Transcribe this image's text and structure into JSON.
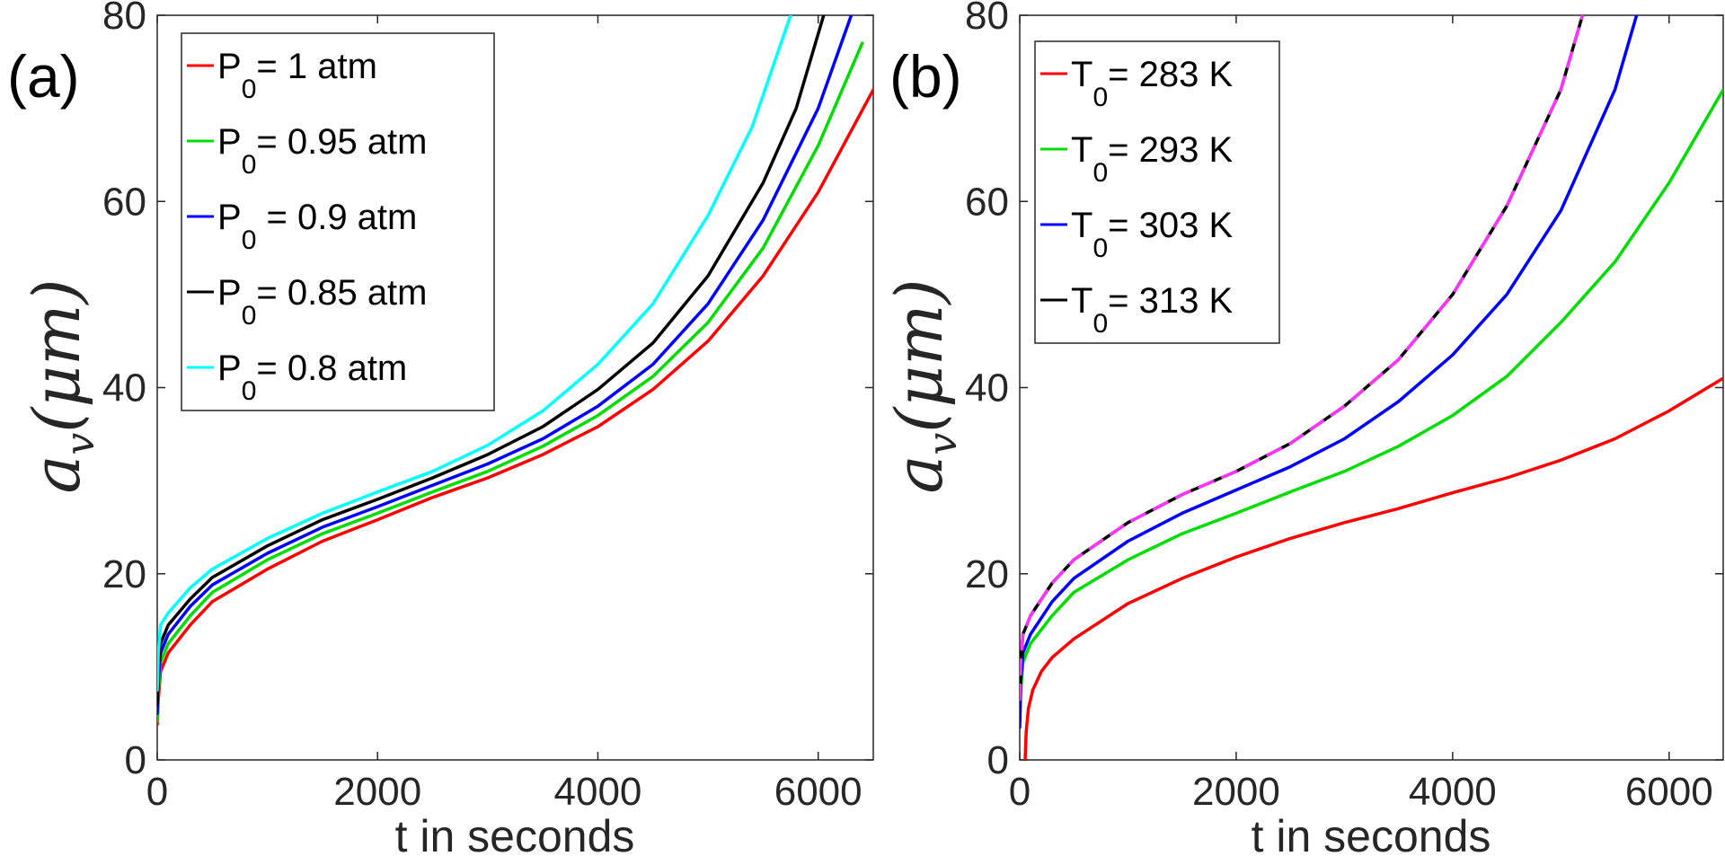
{
  "chart_data": [
    {
      "type": "line",
      "panel_label": "(a)",
      "xlabel": "t in seconds",
      "ylabel": "a_v(μm)",
      "ylabel_main": "a",
      "ylabel_sub": "v",
      "ylabel_unit": "(μm)",
      "xlim": [
        0,
        6500
      ],
      "ylim": [
        0,
        80
      ],
      "xticks": [
        "0",
        "2000",
        "4000",
        "6000"
      ],
      "yticks": [
        "0",
        "20",
        "40",
        "60",
        "80"
      ],
      "legend_position": "top-left",
      "series": [
        {
          "name": "P0= 1 atm",
          "sym": "P",
          "sub": "0",
          "rest": "= 1 atm",
          "color": "#ff0000",
          "dash": "",
          "x": [
            0,
            10,
            30,
            100,
            300,
            500,
            1000,
            1500,
            2000,
            2500,
            3000,
            3500,
            4000,
            4500,
            5000,
            5500,
            6000,
            6500
          ],
          "y": [
            3.8,
            6.5,
            9.5,
            11.5,
            14.5,
            17,
            20.5,
            23.5,
            25.8,
            28.2,
            30.3,
            32.8,
            35.8,
            39.8,
            45,
            52,
            61,
            72
          ]
        },
        {
          "name": "P0= 0.95 atm",
          "sym": "P",
          "sub": "0",
          "rest": "= 0.95 atm",
          "color": "#00dd00",
          "dash": "",
          "x": [
            0,
            10,
            30,
            100,
            300,
            500,
            1000,
            1500,
            2000,
            2500,
            3000,
            3500,
            4000,
            4500,
            5000,
            5500,
            6000,
            6400
          ],
          "y": [
            4.2,
            7.5,
            10.5,
            12.5,
            15.5,
            18,
            21.5,
            24.3,
            26.5,
            28.8,
            31,
            33.7,
            37,
            41.2,
            47,
            55,
            66,
            77
          ]
        },
        {
          "name": "P0 = 0.9 atm",
          "sym": "P",
          "sub": "0",
          "rest": " = 0.9 atm",
          "color": "#0000ff",
          "dash": "",
          "x": [
            0,
            10,
            30,
            100,
            300,
            500,
            1000,
            1500,
            2000,
            2500,
            3000,
            3500,
            4000,
            4500,
            5000,
            5500,
            6000,
            6300
          ],
          "y": [
            5,
            8.5,
            11.5,
            13.5,
            16.5,
            18.8,
            22.2,
            25,
            27.2,
            29.5,
            31.8,
            34.5,
            38,
            42.5,
            49,
            58,
            70,
            80
          ]
        },
        {
          "name": "P0=  0.85 atm",
          "sym": "P",
          "sub": "0",
          "rest": "=  0.85 atm",
          "color": "#000000",
          "dash": "",
          "x": [
            0,
            10,
            30,
            100,
            300,
            500,
            1000,
            1500,
            2000,
            2500,
            3000,
            3500,
            4000,
            4500,
            5000,
            5500,
            5800,
            6050
          ],
          "y": [
            6,
            10,
            12.5,
            14.5,
            17.3,
            19.6,
            23,
            25.8,
            28,
            30.3,
            32.8,
            35.8,
            39.8,
            44.8,
            52,
            62,
            70,
            80
          ]
        },
        {
          "name": "P0=  0.8 atm",
          "sym": "P",
          "sub": "0",
          "rest": "=  0.8 atm",
          "color": "#00ffff",
          "dash": "",
          "x": [
            0,
            10,
            30,
            100,
            300,
            500,
            1000,
            1500,
            2000,
            2500,
            3000,
            3500,
            4000,
            4500,
            5000,
            5400,
            5750
          ],
          "y": [
            7.5,
            11.5,
            14.5,
            15.8,
            18.5,
            20.5,
            23.8,
            26.5,
            28.8,
            31,
            33.8,
            37.5,
            42.5,
            49,
            58.5,
            68,
            80
          ]
        }
      ]
    },
    {
      "type": "line",
      "panel_label": "(b)",
      "xlabel": "t in seconds",
      "ylabel": "a_v(μm)",
      "ylabel_main": "a",
      "ylabel_sub": "v",
      "ylabel_unit": "(μm)",
      "xlim": [
        0,
        6500
      ],
      "ylim": [
        0,
        80
      ],
      "xticks": [
        "0",
        "2000",
        "4000",
        "6000"
      ],
      "yticks": [
        "0",
        "20",
        "40",
        "60",
        "80"
      ],
      "legend_position": "top-left",
      "series": [
        {
          "name": "T0= 283 K",
          "sym": "T",
          "sub": "0",
          "rest": "= 283 K",
          "color": "#ff0000",
          "dash": "",
          "x": [
            50,
            60,
            80,
            120,
            200,
            300,
            500,
            1000,
            1500,
            2000,
            2500,
            3000,
            3500,
            4000,
            4500,
            5000,
            5500,
            6000,
            6500
          ],
          "y": [
            0,
            3,
            5.5,
            7.5,
            9.5,
            11,
            13,
            16.8,
            19.5,
            21.8,
            23.8,
            25.5,
            27,
            28.7,
            30.3,
            32.2,
            34.5,
            37.5,
            41
          ]
        },
        {
          "name": "T0= 293 K",
          "sym": "T",
          "sub": "0",
          "rest": "= 293 K",
          "color": "#00dd00",
          "dash": "",
          "x": [
            0,
            10,
            30,
            100,
            300,
            500,
            1000,
            1500,
            2000,
            2500,
            3000,
            3500,
            4000,
            4500,
            5000,
            5500,
            6000,
            6500
          ],
          "y": [
            4.2,
            7.5,
            10.5,
            12.5,
            15.5,
            18,
            21.5,
            24.3,
            26.5,
            28.8,
            31,
            33.7,
            37,
            41.2,
            47,
            53.5,
            62,
            72
          ]
        },
        {
          "name": "T0= 303 K",
          "sym": "T",
          "sub": "0",
          "rest": "= 303 K",
          "color": "#0000ff",
          "dash": "",
          "x": [
            0,
            10,
            30,
            100,
            300,
            500,
            1000,
            1500,
            2000,
            2500,
            3000,
            3500,
            4000,
            4500,
            5000,
            5500,
            5700
          ],
          "y": [
            3.5,
            8.5,
            11.5,
            13.5,
            17,
            19.5,
            23.5,
            26.5,
            29,
            31.5,
            34.5,
            38.5,
            43.5,
            50,
            59,
            72,
            80
          ]
        },
        {
          "name": "T0= 313 K",
          "sym": "T",
          "sub": "0",
          "rest": "= 313 K",
          "color": "#000000",
          "dash": "",
          "x": [
            0,
            10,
            30,
            100,
            300,
            500,
            1000,
            1500,
            2000,
            2500,
            3000,
            3500,
            4000,
            4500,
            5000,
            5200
          ],
          "y": [
            6.5,
            10.5,
            13.5,
            15.5,
            19,
            21.5,
            25.5,
            28.5,
            31,
            34,
            38,
            43,
            50,
            59.5,
            72,
            80
          ]
        },
        {
          "name": "",
          "sym": "",
          "sub": "",
          "rest": "",
          "color": "#ff33ff",
          "dash": "16 12",
          "x": [
            0,
            10,
            30,
            100,
            300,
            500,
            1000,
            1500,
            2000,
            2500,
            3000,
            3500,
            4000,
            4500,
            5000,
            5200
          ],
          "y": [
            6.5,
            10.5,
            13.5,
            15.5,
            19,
            21.5,
            25.5,
            28.5,
            31,
            34,
            38,
            43,
            50,
            59.5,
            72,
            80
          ]
        }
      ]
    }
  ]
}
